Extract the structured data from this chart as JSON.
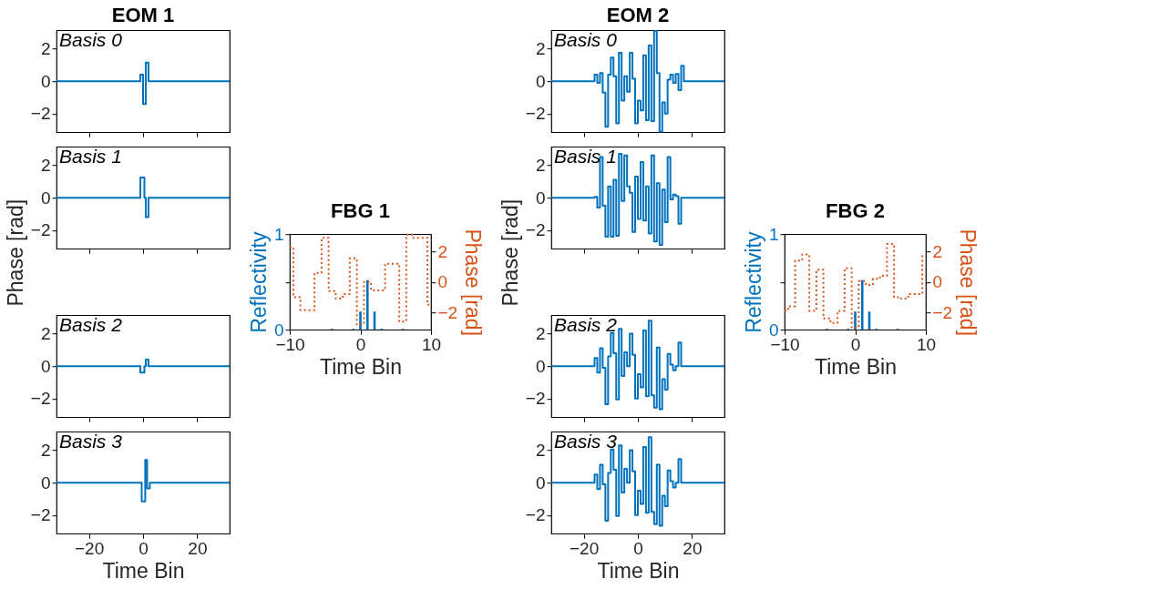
{
  "chart_data": [
    {
      "type": "step",
      "title": "EOM 1",
      "annotations": [
        "Basis 0"
      ],
      "xlim": [
        -32,
        32
      ],
      "xticks": [
        -20,
        0,
        20
      ],
      "ylim": [
        -3.14,
        3.14
      ],
      "yticks": [
        -2,
        0,
        2
      ],
      "tick_labels": "y",
      "line_style": "solid",
      "series": [
        {
          "color": "#0072bd",
          "x": [
            -32,
            -1,
            0,
            1,
            2,
            32
          ],
          "values": [
            0,
            0.4,
            -1.4,
            1.15,
            0,
            0
          ]
        }
      ]
    },
    {
      "type": "step",
      "ylabel": "Phase [rad]",
      "annotations": [
        "Basis 1"
      ],
      "xlim": [
        -32,
        32
      ],
      "xticks": [
        -20,
        0,
        20
      ],
      "ylim": [
        -3.14,
        3.14
      ],
      "yticks": [
        -2,
        0,
        2
      ],
      "tick_labels": "y",
      "line_style": "solid",
      "series": [
        {
          "color": "#0072bd",
          "x": [
            -32,
            -1,
            0.5,
            1,
            2,
            32
          ],
          "values": [
            0,
            1.25,
            0,
            -1.2,
            0,
            0
          ]
        }
      ]
    },
    {
      "type": "step",
      "annotations": [
        "Basis 2"
      ],
      "xlim": [
        -32,
        32
      ],
      "xticks": [
        -20,
        0,
        20
      ],
      "ylim": [
        -3.14,
        3.14
      ],
      "yticks": [
        -2,
        0,
        2
      ],
      "tick_labels": "y",
      "line_style": "solid",
      "series": [
        {
          "color": "#0072bd",
          "x": [
            -32,
            -1,
            0.5,
            1,
            2,
            32
          ],
          "values": [
            0,
            -0.4,
            0,
            0.4,
            0,
            0
          ]
        }
      ]
    },
    {
      "type": "step",
      "xlabel": "Time Bin",
      "annotations": [
        "Basis 3"
      ],
      "xlim": [
        -32,
        32
      ],
      "xticks": [
        -20,
        0,
        20
      ],
      "ylim": [
        -3.14,
        3.14
      ],
      "yticks": [
        -2,
        0,
        2
      ],
      "line_style": "solid",
      "series": [
        {
          "color": "#0072bd",
          "x": [
            -32,
            -0.5,
            0.8,
            1.5,
            2.5,
            32
          ],
          "values": [
            0,
            -1.15,
            1.4,
            -0.35,
            0,
            0
          ]
        }
      ]
    },
    {
      "type": "bar",
      "title": "FBG 1",
      "xlabel": "Time Bin",
      "ylabel": "Reflectivity",
      "y2label": "Phase [rad]",
      "xlim": [
        -10,
        10
      ],
      "xticks": [
        -10,
        0,
        10
      ],
      "ylim": [
        0,
        1
      ],
      "yticks": [
        0,
        {
          "value": 0.5,
          "label": null
        },
        1
      ],
      "y2lim": [
        -3.14,
        3.14
      ],
      "y2ticks": [
        -2,
        0,
        2
      ],
      "series": [
        {
          "type": "bar",
          "color": "#0072bd",
          "x": [
            -4,
            -1,
            0,
            1,
            2,
            3,
            6
          ],
          "values": [
            0.01,
            0.01,
            0.19,
            0.52,
            0.19,
            0.01,
            0.01
          ]
        },
        {
          "type": "step",
          "axis": "y2",
          "line_style": "dotted",
          "color": "#d95319",
          "x": [
            -10,
            -9.5,
            -8.5,
            -6.5,
            -5.5,
            -4.5,
            -3.5,
            -2.5,
            -1.5,
            -0.5,
            0.5,
            1.5,
            3.5,
            5.5,
            6.5,
            7.5,
            9.5,
            10
          ],
          "values": [
            2.3,
            -1.0,
            -1.85,
            0.6,
            2.9,
            -0.6,
            -1.1,
            -0.8,
            1.55,
            -2.8,
            0.0,
            -0.55,
            1.2,
            -2.6,
            3.1,
            2.9,
            -1.5,
            -1.5
          ]
        }
      ]
    },
    {
      "type": "step",
      "title": "EOM 2",
      "annotations": [
        "Basis 0"
      ],
      "xlim": [
        -32,
        32
      ],
      "xticks": [
        -20,
        0,
        20
      ],
      "ylim": [
        -3.14,
        3.14
      ],
      "yticks": [
        -2,
        0,
        2
      ],
      "tick_labels": "y",
      "line_style": "solid",
      "series": [
        {
          "color": "#0072bd",
          "x": [
            -32,
            -16,
            -15,
            -14,
            -13,
            -12,
            -11,
            -10,
            -9,
            -8,
            -7,
            -6,
            -5,
            -4,
            -3,
            -2,
            -1,
            0,
            1,
            2,
            3,
            4,
            5,
            6,
            7,
            8,
            9,
            10,
            11,
            12,
            13,
            14,
            15,
            16,
            17,
            32
          ],
          "values": [
            0,
            0.4,
            -0.1,
            0.5,
            -0.7,
            -2.8,
            0.4,
            1.45,
            0.3,
            -2.6,
            1.75,
            -1.2,
            0.3,
            -0.65,
            1.75,
            0.15,
            -2.6,
            -1.2,
            -1.8,
            1.6,
            -2.4,
            2.2,
            -2.45,
            3.1,
            0.5,
            -3.1,
            -1.3,
            -2.0,
            0.1,
            0.4,
            -0.1,
            0.45,
            -0.55,
            0.95,
            0,
            0
          ]
        }
      ]
    },
    {
      "type": "step",
      "ylabel": "Phase [rad]",
      "annotations": [
        "Basis 1"
      ],
      "xlim": [
        -32,
        32
      ],
      "xticks": [
        -20,
        0,
        20
      ],
      "ylim": [
        -3.14,
        3.14
      ],
      "yticks": [
        -2,
        0,
        2
      ],
      "tick_labels": "y",
      "line_style": "solid",
      "series": [
        {
          "color": "#0072bd",
          "x": [
            -32,
            -16,
            -15,
            -14,
            -13,
            -12,
            -11,
            -10,
            -9,
            -8,
            -7,
            -6,
            -5,
            -4,
            -3,
            -2,
            -1,
            0,
            1,
            2,
            3,
            4,
            5,
            6,
            7,
            8,
            9,
            10,
            11,
            12,
            13,
            14,
            15,
            16,
            32
          ],
          "values": [
            0,
            0.05,
            -0.6,
            2.5,
            -0.5,
            -2.4,
            0.7,
            -2.4,
            1.1,
            -2.35,
            2.7,
            -0.2,
            2.6,
            0.7,
            0.3,
            -2.1,
            1.3,
            -1.3,
            2.2,
            -1.4,
            0.7,
            -2.2,
            2.6,
            -2.7,
            0.9,
            -2.9,
            0.5,
            -1.5,
            2.5,
            -0.1,
            0.2,
            0.1,
            -1.6,
            0,
            0
          ]
        }
      ]
    },
    {
      "type": "step",
      "annotations": [
        "Basis 2"
      ],
      "xlim": [
        -32,
        32
      ],
      "xticks": [
        -20,
        0,
        20
      ],
      "ylim": [
        -3.14,
        3.14
      ],
      "yticks": [
        -2,
        0,
        2
      ],
      "tick_labels": "y",
      "line_style": "solid",
      "series": [
        {
          "color": "#0072bd",
          "x": [
            -32,
            -16,
            -15,
            -14,
            -13,
            -12,
            -11,
            -10,
            -9,
            -8,
            -7,
            -6,
            -5,
            -4,
            -3,
            -2,
            -1,
            0,
            1,
            2,
            3,
            4,
            5,
            6,
            7,
            8,
            9,
            10,
            11,
            12,
            13,
            14,
            15,
            16,
            32
          ],
          "values": [
            0,
            0.5,
            -0.4,
            1.1,
            -0.1,
            -2.35,
            0.6,
            2.05,
            0.8,
            -2.05,
            2.3,
            -0.6,
            0.85,
            0,
            2.0,
            0.7,
            -2.0,
            -0.5,
            -1.3,
            2.2,
            -1.85,
            2.8,
            -1.8,
            -2.55,
            1.15,
            -2.65,
            -0.8,
            -1.45,
            0.75,
            0.1,
            -0.25,
            0,
            1.45,
            0,
            0
          ]
        }
      ]
    },
    {
      "type": "step",
      "xlabel": "Time Bin",
      "annotations": [
        "Basis 3"
      ],
      "xlim": [
        -32,
        32
      ],
      "xticks": [
        -20,
        0,
        20
      ],
      "ylim": [
        -3.14,
        3.14
      ],
      "yticks": [
        -2,
        0,
        2
      ],
      "line_style": "solid",
      "series": [
        {
          "color": "#0072bd",
          "x": [
            -32,
            -16,
            -15,
            -14,
            -13,
            -12,
            -11,
            -10,
            -9,
            -8,
            -7,
            -6,
            -5,
            -4,
            -3,
            -2,
            -1,
            0,
            1,
            2,
            3,
            4,
            5,
            6,
            7,
            8,
            9,
            10,
            11,
            12,
            13,
            14,
            15,
            16,
            32
          ],
          "values": [
            0,
            0.5,
            -0.4,
            1.1,
            -0.1,
            -2.35,
            0.6,
            2.05,
            0.8,
            -2.05,
            2.3,
            -0.6,
            0.85,
            0,
            2.0,
            0.7,
            -2.0,
            -0.5,
            -1.3,
            2.2,
            -1.85,
            2.8,
            -1.8,
            -2.55,
            1.1,
            -2.65,
            -0.8,
            -1.45,
            0.75,
            0.1,
            -0.3,
            0,
            1.45,
            0,
            0
          ]
        }
      ]
    },
    {
      "type": "bar",
      "title": "FBG 2",
      "xlabel": "Time Bin",
      "ylabel": "Reflectivity",
      "y2label": "Phase [rad]",
      "xlim": [
        -10,
        10
      ],
      "xticks": [
        -10,
        0,
        10
      ],
      "ylim": [
        0,
        1
      ],
      "yticks": [
        0,
        {
          "value": 0.5,
          "label": null
        },
        1
      ],
      "y2lim": [
        -3.14,
        3.14
      ],
      "y2ticks": [
        -2,
        0,
        2
      ],
      "series": [
        {
          "type": "bar",
          "color": "#0072bd",
          "x": [
            -4,
            -1,
            0,
            1,
            2,
            3,
            6
          ],
          "values": [
            0.01,
            0.01,
            0.19,
            0.52,
            0.19,
            0.01,
            0.01
          ]
        },
        {
          "type": "step",
          "axis": "y2",
          "line_style": "dotted",
          "color": "#d95319",
          "x": [
            -10,
            -9.5,
            -8.5,
            -7.5,
            -6.5,
            -5.5,
            -4.5,
            -3.5,
            -2.5,
            -1.5,
            -0.5,
            0.5,
            1.5,
            2.5,
            3.5,
            4.5,
            5.5,
            6.5,
            7.5,
            9.5,
            10
          ],
          "values": [
            -1.9,
            -1.6,
            1.4,
            1.8,
            -1.9,
            0.8,
            -2.4,
            -2.7,
            -1.9,
            0.9,
            -3.0,
            0.05,
            -0.2,
            0.2,
            0.4,
            2.5,
            -1.0,
            -1.1,
            -0.8,
            1.7,
            1.7
          ]
        }
      ]
    }
  ]
}
